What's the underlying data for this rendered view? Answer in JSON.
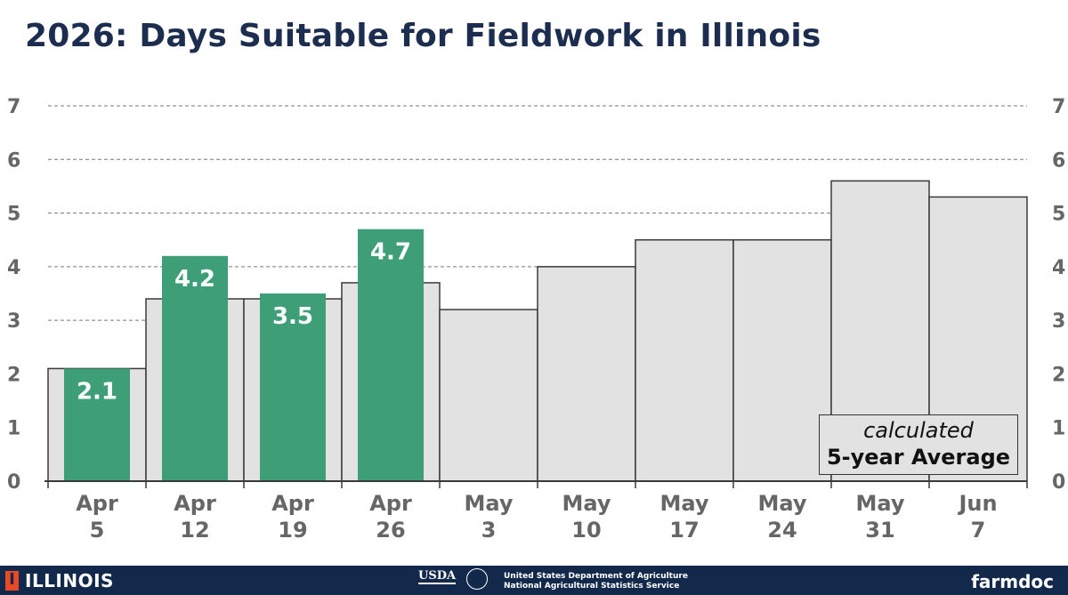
{
  "chart_data": {
    "type": "bar",
    "title": "2026: Days Suitable for Fieldwork in Illinois",
    "categories": [
      [
        "Apr",
        "5"
      ],
      [
        "Apr",
        "12"
      ],
      [
        "Apr",
        "19"
      ],
      [
        "Apr",
        "26"
      ],
      [
        "May",
        "3"
      ],
      [
        "May",
        "10"
      ],
      [
        "May",
        "17"
      ],
      [
        "May",
        "24"
      ],
      [
        "May",
        "31"
      ],
      [
        "Jun",
        "7"
      ]
    ],
    "series": [
      {
        "name": "calculated 5-year Average",
        "values": [
          2.1,
          3.4,
          3.4,
          3.7,
          3.2,
          4.0,
          4.5,
          4.5,
          5.6,
          5.3
        ],
        "color": "#e2e2e2"
      },
      {
        "name": "2026",
        "values": [
          2.1,
          4.2,
          3.5,
          4.7,
          null,
          null,
          null,
          null,
          null,
          null
        ],
        "color": "#3e9e78"
      }
    ],
    "ylim": [
      0,
      7
    ],
    "yticks": [
      0,
      1,
      2,
      3,
      4,
      5,
      6,
      7
    ],
    "grid": true,
    "axis_labels_on_both_sides": true,
    "legend": {
      "position": "bottom-right",
      "line1": "calculated",
      "line2": "5-year Average"
    }
  },
  "footer": {
    "university": "ILLINOIS",
    "usda": "USDA",
    "agency_line1": "United States Department of Agriculture",
    "agency_line2": "National Agricultural Statistics Service",
    "brand": "farmdoc"
  }
}
